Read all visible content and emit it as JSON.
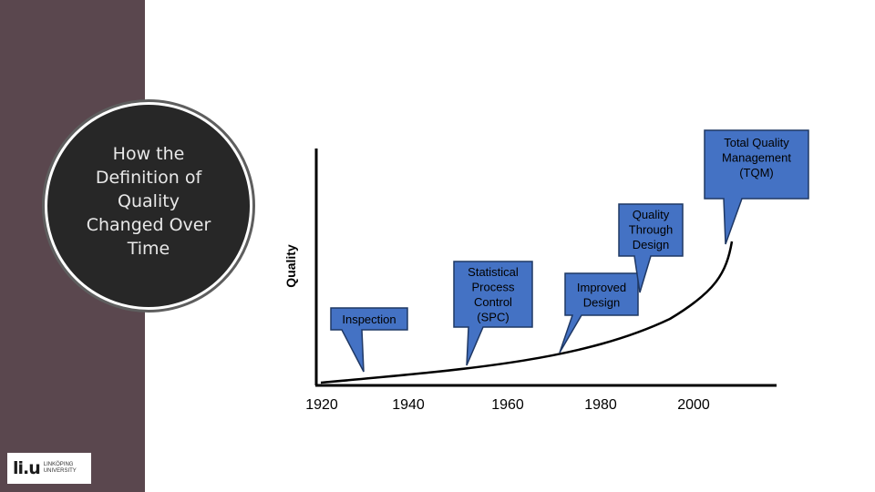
{
  "title": "How the\nDefinition of\nQuality\nChanged Over\nTime",
  "logo": {
    "mark": "li.u",
    "text": "LINKÖPING\nUNIVERSITY"
  },
  "colors": {
    "sidebar": "#5a474e",
    "callout_fill": "#4472c4",
    "callout_stroke": "#1f3864",
    "circle": "#272727"
  },
  "chart_data": {
    "type": "line",
    "ylabel": "Quality",
    "x_ticks": [
      "1920",
      "1940",
      "1960",
      "1980",
      "2000"
    ],
    "callouts": [
      {
        "label": "Inspection"
      },
      {
        "label": "Statistical\nProcess\nControl\n(SPC)"
      },
      {
        "label": "Improved\nDesign"
      },
      {
        "label": "Quality\nThrough\nDesign"
      },
      {
        "label": "Total Quality\nManagement\n(TQM)"
      }
    ]
  }
}
